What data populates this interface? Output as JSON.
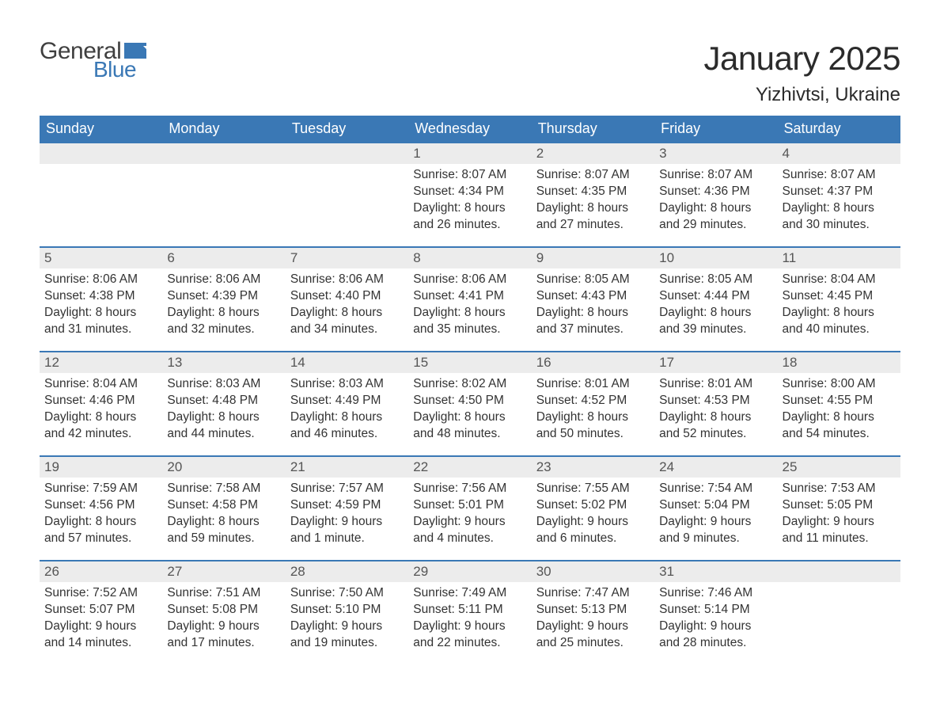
{
  "logo": {
    "text_general": "General",
    "text_blue": "Blue",
    "flag_color": "#3a78b5"
  },
  "title": "January 2025",
  "location": "Yizhivtsi, Ukraine",
  "colors": {
    "header_bg": "#3a78b5",
    "header_text": "#ffffff",
    "daynum_bg": "#ececec",
    "daynum_text": "#555555",
    "body_text": "#333333",
    "row_border": "#3a78b5",
    "page_bg": "#ffffff"
  },
  "typography": {
    "title_fontsize": 42,
    "location_fontsize": 24,
    "header_fontsize": 18,
    "daynum_fontsize": 17,
    "content_fontsize": 15.5,
    "font_family": "Arial"
  },
  "day_headers": [
    "Sunday",
    "Monday",
    "Tuesday",
    "Wednesday",
    "Thursday",
    "Friday",
    "Saturday"
  ],
  "weeks": [
    [
      null,
      null,
      null,
      {
        "n": "1",
        "sunrise": "Sunrise: 8:07 AM",
        "sunset": "Sunset: 4:34 PM",
        "d1": "Daylight: 8 hours",
        "d2": "and 26 minutes."
      },
      {
        "n": "2",
        "sunrise": "Sunrise: 8:07 AM",
        "sunset": "Sunset: 4:35 PM",
        "d1": "Daylight: 8 hours",
        "d2": "and 27 minutes."
      },
      {
        "n": "3",
        "sunrise": "Sunrise: 8:07 AM",
        "sunset": "Sunset: 4:36 PM",
        "d1": "Daylight: 8 hours",
        "d2": "and 29 minutes."
      },
      {
        "n": "4",
        "sunrise": "Sunrise: 8:07 AM",
        "sunset": "Sunset: 4:37 PM",
        "d1": "Daylight: 8 hours",
        "d2": "and 30 minutes."
      }
    ],
    [
      {
        "n": "5",
        "sunrise": "Sunrise: 8:06 AM",
        "sunset": "Sunset: 4:38 PM",
        "d1": "Daylight: 8 hours",
        "d2": "and 31 minutes."
      },
      {
        "n": "6",
        "sunrise": "Sunrise: 8:06 AM",
        "sunset": "Sunset: 4:39 PM",
        "d1": "Daylight: 8 hours",
        "d2": "and 32 minutes."
      },
      {
        "n": "7",
        "sunrise": "Sunrise: 8:06 AM",
        "sunset": "Sunset: 4:40 PM",
        "d1": "Daylight: 8 hours",
        "d2": "and 34 minutes."
      },
      {
        "n": "8",
        "sunrise": "Sunrise: 8:06 AM",
        "sunset": "Sunset: 4:41 PM",
        "d1": "Daylight: 8 hours",
        "d2": "and 35 minutes."
      },
      {
        "n": "9",
        "sunrise": "Sunrise: 8:05 AM",
        "sunset": "Sunset: 4:43 PM",
        "d1": "Daylight: 8 hours",
        "d2": "and 37 minutes."
      },
      {
        "n": "10",
        "sunrise": "Sunrise: 8:05 AM",
        "sunset": "Sunset: 4:44 PM",
        "d1": "Daylight: 8 hours",
        "d2": "and 39 minutes."
      },
      {
        "n": "11",
        "sunrise": "Sunrise: 8:04 AM",
        "sunset": "Sunset: 4:45 PM",
        "d1": "Daylight: 8 hours",
        "d2": "and 40 minutes."
      }
    ],
    [
      {
        "n": "12",
        "sunrise": "Sunrise: 8:04 AM",
        "sunset": "Sunset: 4:46 PM",
        "d1": "Daylight: 8 hours",
        "d2": "and 42 minutes."
      },
      {
        "n": "13",
        "sunrise": "Sunrise: 8:03 AM",
        "sunset": "Sunset: 4:48 PM",
        "d1": "Daylight: 8 hours",
        "d2": "and 44 minutes."
      },
      {
        "n": "14",
        "sunrise": "Sunrise: 8:03 AM",
        "sunset": "Sunset: 4:49 PM",
        "d1": "Daylight: 8 hours",
        "d2": "and 46 minutes."
      },
      {
        "n": "15",
        "sunrise": "Sunrise: 8:02 AM",
        "sunset": "Sunset: 4:50 PM",
        "d1": "Daylight: 8 hours",
        "d2": "and 48 minutes."
      },
      {
        "n": "16",
        "sunrise": "Sunrise: 8:01 AM",
        "sunset": "Sunset: 4:52 PM",
        "d1": "Daylight: 8 hours",
        "d2": "and 50 minutes."
      },
      {
        "n": "17",
        "sunrise": "Sunrise: 8:01 AM",
        "sunset": "Sunset: 4:53 PM",
        "d1": "Daylight: 8 hours",
        "d2": "and 52 minutes."
      },
      {
        "n": "18",
        "sunrise": "Sunrise: 8:00 AM",
        "sunset": "Sunset: 4:55 PM",
        "d1": "Daylight: 8 hours",
        "d2": "and 54 minutes."
      }
    ],
    [
      {
        "n": "19",
        "sunrise": "Sunrise: 7:59 AM",
        "sunset": "Sunset: 4:56 PM",
        "d1": "Daylight: 8 hours",
        "d2": "and 57 minutes."
      },
      {
        "n": "20",
        "sunrise": "Sunrise: 7:58 AM",
        "sunset": "Sunset: 4:58 PM",
        "d1": "Daylight: 8 hours",
        "d2": "and 59 minutes."
      },
      {
        "n": "21",
        "sunrise": "Sunrise: 7:57 AM",
        "sunset": "Sunset: 4:59 PM",
        "d1": "Daylight: 9 hours",
        "d2": "and 1 minute."
      },
      {
        "n": "22",
        "sunrise": "Sunrise: 7:56 AM",
        "sunset": "Sunset: 5:01 PM",
        "d1": "Daylight: 9 hours",
        "d2": "and 4 minutes."
      },
      {
        "n": "23",
        "sunrise": "Sunrise: 7:55 AM",
        "sunset": "Sunset: 5:02 PM",
        "d1": "Daylight: 9 hours",
        "d2": "and 6 minutes."
      },
      {
        "n": "24",
        "sunrise": "Sunrise: 7:54 AM",
        "sunset": "Sunset: 5:04 PM",
        "d1": "Daylight: 9 hours",
        "d2": "and 9 minutes."
      },
      {
        "n": "25",
        "sunrise": "Sunrise: 7:53 AM",
        "sunset": "Sunset: 5:05 PM",
        "d1": "Daylight: 9 hours",
        "d2": "and 11 minutes."
      }
    ],
    [
      {
        "n": "26",
        "sunrise": "Sunrise: 7:52 AM",
        "sunset": "Sunset: 5:07 PM",
        "d1": "Daylight: 9 hours",
        "d2": "and 14 minutes."
      },
      {
        "n": "27",
        "sunrise": "Sunrise: 7:51 AM",
        "sunset": "Sunset: 5:08 PM",
        "d1": "Daylight: 9 hours",
        "d2": "and 17 minutes."
      },
      {
        "n": "28",
        "sunrise": "Sunrise: 7:50 AM",
        "sunset": "Sunset: 5:10 PM",
        "d1": "Daylight: 9 hours",
        "d2": "and 19 minutes."
      },
      {
        "n": "29",
        "sunrise": "Sunrise: 7:49 AM",
        "sunset": "Sunset: 5:11 PM",
        "d1": "Daylight: 9 hours",
        "d2": "and 22 minutes."
      },
      {
        "n": "30",
        "sunrise": "Sunrise: 7:47 AM",
        "sunset": "Sunset: 5:13 PM",
        "d1": "Daylight: 9 hours",
        "d2": "and 25 minutes."
      },
      {
        "n": "31",
        "sunrise": "Sunrise: 7:46 AM",
        "sunset": "Sunset: 5:14 PM",
        "d1": "Daylight: 9 hours",
        "d2": "and 28 minutes."
      },
      null
    ]
  ]
}
